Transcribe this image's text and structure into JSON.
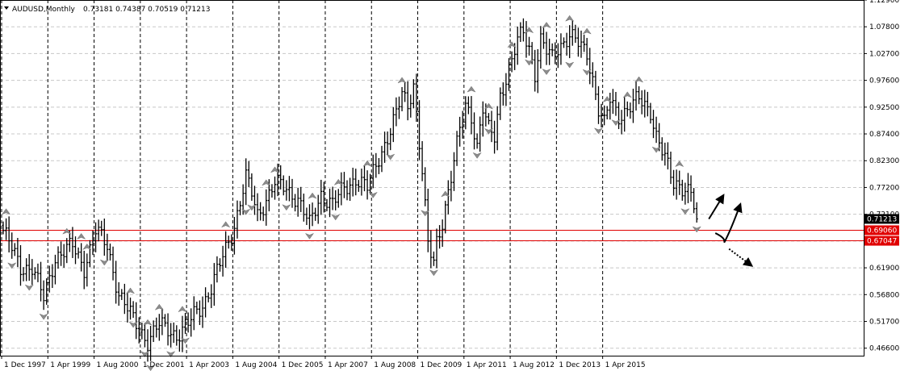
{
  "header": {
    "symbol": "AUDUSD,Monthly",
    "ohlc": "0.73181 0.74387 0.70519 0.71213"
  },
  "colors": {
    "background": "#ffffff",
    "grid": "#c8c8c8",
    "bars": "#000000",
    "fractal": "#8c8c8c",
    "level": "#e00000",
    "current_tag": "#000000"
  },
  "chart_data": {
    "type": "ohlc",
    "instrument": "AUDUSD",
    "timeframe": "Monthly",
    "ylim": [
      0.4517,
      1.129
    ],
    "grid": true,
    "y_ticks": [
      "1.12900",
      "1.07800",
      "1.02700",
      "0.97600",
      "0.92500",
      "0.87400",
      "0.82300",
      "0.77200",
      "0.72100",
      "0.67000",
      "0.61900",
      "0.56800",
      "0.51700",
      "0.46600"
    ],
    "x_ticks": [
      "1 Dec 1997",
      "1 Apr 1999",
      "1 Aug 2000",
      "1 Dec 2001",
      "1 Apr 2003",
      "1 Aug 2004",
      "1 Dec 2005",
      "1 Apr 2007",
      "1 Aug 2008",
      "1 Dec 2009",
      "1 Apr 2011",
      "1 Aug 2012",
      "1 Dec 2013",
      "1 Apr 2015"
    ],
    "last_bar": {
      "open": 0.73181,
      "high": 0.74387,
      "low": 0.70519,
      "close": 0.71213
    },
    "price_levels": [
      {
        "label": "0.69060",
        "value": 0.6906
      },
      {
        "label": "0.67047",
        "value": 0.67047
      }
    ],
    "current_price": {
      "label": "0.71213",
      "value": 0.71213
    },
    "anchors": [
      [
        0,
        0.69
      ],
      [
        6,
        0.62
      ],
      [
        10,
        0.62
      ],
      [
        14,
        0.56
      ],
      [
        18,
        0.64
      ],
      [
        24,
        0.66
      ],
      [
        28,
        0.62
      ],
      [
        32,
        0.69
      ],
      [
        36,
        0.66
      ],
      [
        40,
        0.57
      ],
      [
        45,
        0.52
      ],
      [
        50,
        0.48
      ],
      [
        54,
        0.51
      ],
      [
        58,
        0.5
      ],
      [
        60,
        0.49
      ],
      [
        64,
        0.51
      ],
      [
        66,
        0.53
      ],
      [
        69,
        0.55
      ],
      [
        72,
        0.58
      ],
      [
        76,
        0.64
      ],
      [
        80,
        0.7
      ],
      [
        84,
        0.79
      ],
      [
        86,
        0.76
      ],
      [
        88,
        0.72
      ],
      [
        90,
        0.74
      ],
      [
        94,
        0.78
      ],
      [
        98,
        0.77
      ],
      [
        102,
        0.75
      ],
      [
        106,
        0.7
      ],
      [
        110,
        0.76
      ],
      [
        114,
        0.74
      ],
      [
        118,
        0.77
      ],
      [
        122,
        0.79
      ],
      [
        126,
        0.77
      ],
      [
        130,
        0.83
      ],
      [
        134,
        0.88
      ],
      [
        136,
        0.91
      ],
      [
        138,
        0.95
      ],
      [
        140,
        0.93
      ],
      [
        142,
        0.97
      ],
      [
        145,
        0.8
      ],
      [
        147,
        0.66
      ],
      [
        149,
        0.63
      ],
      [
        150,
        0.67
      ],
      [
        152,
        0.71
      ],
      [
        155,
        0.79
      ],
      [
        158,
        0.88
      ],
      [
        160,
        0.93
      ],
      [
        162,
        0.91
      ],
      [
        164,
        0.85
      ],
      [
        166,
        0.92
      ],
      [
        168,
        0.88
      ],
      [
        170,
        0.87
      ],
      [
        172,
        0.95
      ],
      [
        174,
        0.98
      ],
      [
        176,
        1.01
      ],
      [
        178,
        1.05
      ],
      [
        180,
        1.07
      ],
      [
        182,
        1.04
      ],
      [
        184,
        0.99
      ],
      [
        186,
        1.05
      ],
      [
        188,
        1.03
      ],
      [
        190,
        1.02
      ],
      [
        192,
        1.04
      ],
      [
        196,
        1.06
      ],
      [
        200,
        1.04
      ],
      [
        202,
        1.03
      ],
      [
        204,
        0.98
      ],
      [
        206,
        0.92
      ],
      [
        208,
        0.89
      ],
      [
        210,
        0.94
      ],
      [
        213,
        0.91
      ],
      [
        216,
        0.92
      ],
      [
        220,
        0.94
      ],
      [
        224,
        0.92
      ],
      [
        226,
        0.87
      ],
      [
        228,
        0.84
      ],
      [
        230,
        0.81
      ],
      [
        232,
        0.78
      ],
      [
        234,
        0.78
      ],
      [
        236,
        0.77
      ],
      [
        238,
        0.76
      ],
      [
        240,
        0.71
      ]
    ],
    "fractals_up": [
      1,
      22,
      27,
      29,
      44,
      50,
      54,
      62,
      77,
      91,
      94,
      107,
      116,
      126,
      138,
      153,
      162,
      168,
      176,
      182,
      188,
      196,
      202,
      209,
      216,
      220,
      234
    ],
    "fractals_down": [
      3,
      9,
      14,
      35,
      45,
      49,
      51,
      58,
      63,
      84,
      86,
      98,
      106,
      115,
      128,
      134,
      146,
      149,
      164,
      168,
      182,
      188,
      196,
      202,
      206,
      212,
      226,
      236,
      240
    ],
    "projection_arrows": [
      "up",
      "up",
      "down"
    ]
  }
}
